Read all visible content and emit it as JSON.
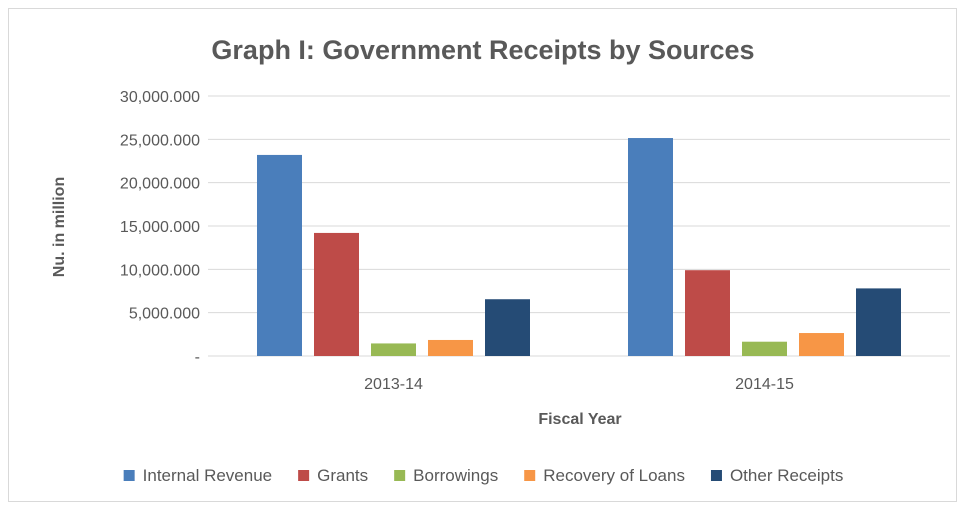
{
  "chart_data": {
    "type": "bar",
    "title": "Graph I: Government Receipts by Sources",
    "xlabel": "Fiscal Year",
    "ylabel": "Nu. in million",
    "categories": [
      "2013-14",
      "2014-15"
    ],
    "series": [
      {
        "name": "Internal Revenue",
        "color": "#4a7ebb",
        "values": [
          23200,
          25150
        ]
      },
      {
        "name": "Grants",
        "color": "#be4b48",
        "values": [
          14200,
          9900
        ]
      },
      {
        "name": "Borrowings",
        "color": "#98b954",
        "values": [
          1450,
          1650
        ]
      },
      {
        "name": "Recovery of Loans",
        "color": "#f79646",
        "values": [
          1850,
          2650
        ]
      },
      {
        "name": "Other Receipts",
        "color": "#254b75",
        "values": [
          6550,
          7800
        ]
      }
    ],
    "ylim": [
      0,
      30000
    ],
    "yticks": [
      {
        "value": 0,
        "label": "-"
      },
      {
        "value": 5000,
        "label": "5,000.000"
      },
      {
        "value": 10000,
        "label": "10,000.000"
      },
      {
        "value": 15000,
        "label": "15,000.000"
      },
      {
        "value": 20000,
        "label": "20,000.000"
      },
      {
        "value": 25000,
        "label": "25,000.000"
      },
      {
        "value": 30000,
        "label": "30,000.000"
      }
    ],
    "grid": true,
    "legend_position": "bottom"
  }
}
